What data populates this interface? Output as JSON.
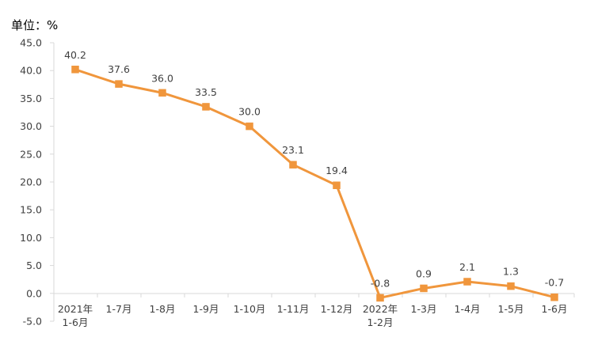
{
  "chart_data": {
    "type": "line",
    "unit_label": "单位：%",
    "categories": [
      [
        "2021年",
        "1-6月"
      ],
      [
        "1-7月"
      ],
      [
        "1-8月"
      ],
      [
        "1-9月"
      ],
      [
        "1-10月"
      ],
      [
        "1-11月"
      ],
      [
        "1-12月"
      ],
      [
        "2022年",
        "1-2月"
      ],
      [
        "1-3月"
      ],
      [
        "1-4月"
      ],
      [
        "1-5月"
      ],
      [
        "1-6月"
      ]
    ],
    "series": [
      {
        "values": [
          40.2,
          37.6,
          36.0,
          33.5,
          30.0,
          23.1,
          19.4,
          -0.8,
          0.9,
          2.1,
          1.3,
          -0.7
        ],
        "labels": [
          "40.2",
          "37.6",
          "36.0",
          "33.5",
          "30.0",
          "23.1",
          "19.4",
          "-0.8",
          "0.9",
          "2.1",
          "1.3",
          "-0.7"
        ],
        "color": "#F0963C",
        "marker": "square"
      }
    ],
    "ylim": [
      -5,
      45
    ],
    "yticks": [
      "45.0",
      "40.0",
      "35.0",
      "30.0",
      "25.0",
      "20.0",
      "15.0",
      "10.0",
      "5.0",
      "0.0",
      "-5.0"
    ],
    "grid": false,
    "legend": "none",
    "axis_color": "#D9D9D9"
  }
}
